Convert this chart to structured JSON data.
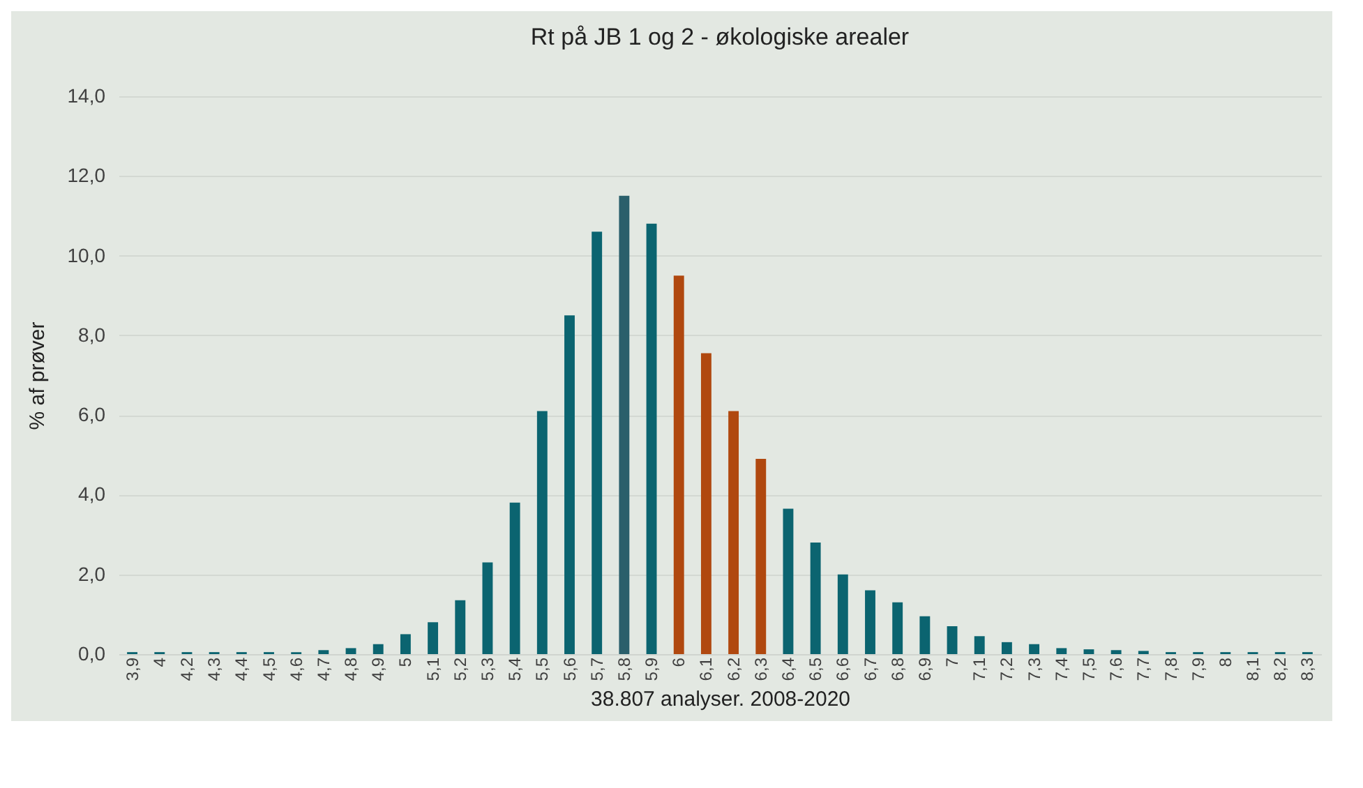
{
  "chart_data": {
    "type": "bar",
    "title": "Rt på JB 1 og 2 - økologiske arealer",
    "xlabel": "38.807 analyser. 2008-2020",
    "ylabel": "% af prøver",
    "categories": [
      "3,9",
      "4",
      "4,2",
      "4,3",
      "4,4",
      "4,5",
      "4,6",
      "4,7",
      "4,8",
      "4,9",
      "5",
      "5,1",
      "5,2",
      "5,3",
      "5,4",
      "5,5",
      "5,6",
      "5,7",
      "5,8",
      "5,9",
      "6",
      "6,1",
      "6,2",
      "6,3",
      "6,4",
      "6,5",
      "6,6",
      "6,7",
      "6,8",
      "6,9",
      "7",
      "7,1",
      "7,2",
      "7,3",
      "7,4",
      "7,5",
      "7,6",
      "7,7",
      "7,8",
      "7,9",
      "8",
      "8,1",
      "8,2",
      "8,3"
    ],
    "values": [
      0.05,
      0.05,
      0.05,
      0.05,
      0.05,
      0.05,
      0.05,
      0.1,
      0.15,
      0.25,
      0.5,
      0.8,
      1.35,
      2.3,
      3.8,
      6.1,
      8.5,
      10.6,
      11.5,
      10.8,
      9.5,
      7.55,
      6.1,
      4.9,
      3.65,
      2.8,
      2.0,
      1.6,
      1.3,
      0.95,
      0.7,
      0.45,
      0.3,
      0.25,
      0.15,
      0.12,
      0.1,
      0.08,
      0.05,
      0.05,
      0.05,
      0.05,
      0.05,
      0.05
    ],
    "colors": [
      "#0b6470",
      "#0b6470",
      "#0b6470",
      "#0b6470",
      "#0b6470",
      "#0b6470",
      "#0b6470",
      "#0b6470",
      "#0b6470",
      "#0b6470",
      "#0b6470",
      "#0b6470",
      "#0b6470",
      "#0b6470",
      "#0b6470",
      "#0b6470",
      "#0b6470",
      "#0b6470",
      "#2a5f6b",
      "#0b6470",
      "#b0480f",
      "#b0480f",
      "#b0480f",
      "#b0480f",
      "#0b6470",
      "#0b6470",
      "#0b6470",
      "#0b6470",
      "#0b6470",
      "#0b6470",
      "#0b6470",
      "#0b6470",
      "#0b6470",
      "#0b6470",
      "#0b6470",
      "#0b6470",
      "#0b6470",
      "#0b6470",
      "#0b6470",
      "#0b6470",
      "#0b6470",
      "#0b6470",
      "#0b6470",
      "#0b6470"
    ],
    "ylim": [
      0,
      14
    ],
    "yticks": [
      {
        "value": 0,
        "label": "0,0"
      },
      {
        "value": 2,
        "label": "2,0"
      },
      {
        "value": 4,
        "label": "4,0"
      },
      {
        "value": 6,
        "label": "6,0"
      },
      {
        "value": 8,
        "label": "8,0"
      },
      {
        "value": 10,
        "label": "10,0"
      },
      {
        "value": 12,
        "label": "12,0"
      },
      {
        "value": 14,
        "label": "14,0"
      }
    ],
    "grid": "y"
  }
}
